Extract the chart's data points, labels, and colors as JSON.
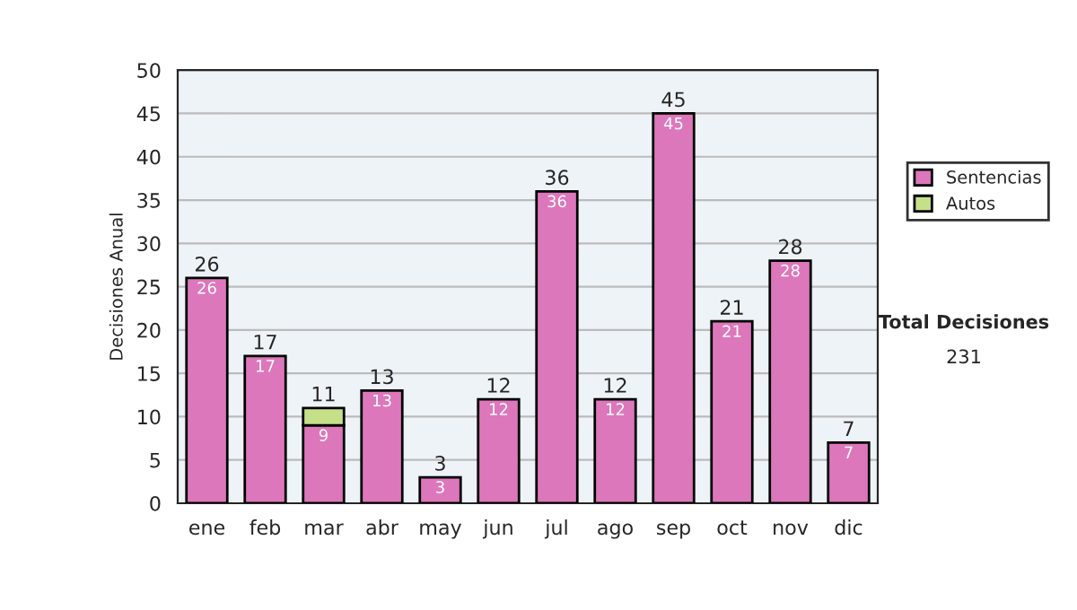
{
  "chart_data": {
    "type": "bar",
    "stacked": true,
    "ylabel": "Decisiones Anual",
    "categories": [
      "ene",
      "feb",
      "mar",
      "abr",
      "may",
      "jun",
      "jul",
      "ago",
      "sep",
      "oct",
      "nov",
      "dic"
    ],
    "series": [
      {
        "name": "Sentencias",
        "color": "#dd77bb",
        "values": [
          26,
          17,
          9,
          13,
          3,
          12,
          36,
          12,
          45,
          21,
          28,
          7
        ],
        "value_labels": [
          "26",
          "17",
          "9",
          "13",
          "3",
          "12",
          "36",
          "12",
          "45",
          "21",
          "28",
          "7"
        ]
      },
      {
        "name": "Autos",
        "color": "#c6e08a",
        "values": [
          null,
          null,
          2,
          null,
          null,
          null,
          null,
          null,
          null,
          null,
          null,
          null
        ]
      }
    ],
    "totals": [
      "26",
      "17",
      "11",
      "13",
      "3",
      "12",
      "36",
      "12",
      "45",
      "21",
      "28",
      "7"
    ],
    "ylim": [
      0,
      50
    ],
    "yticks": [
      0,
      5,
      10,
      15,
      20,
      25,
      30,
      35,
      40,
      45,
      50
    ],
    "grid": "y",
    "legend": "right",
    "annotations": [
      "Total Decisiones",
      "231"
    ]
  }
}
